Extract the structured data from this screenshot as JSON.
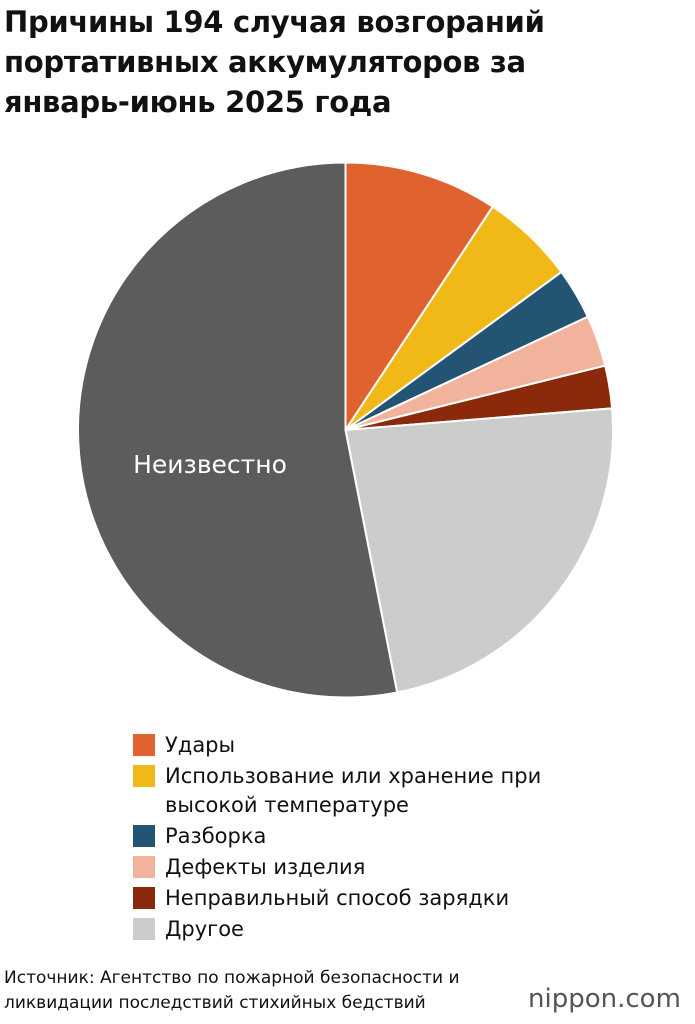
{
  "chart_data": {
    "type": "pie",
    "title": "Причины 194 случая возгораний портативных аккумуляторов за январь-июнь 2025 года",
    "categories": [
      "Удары",
      "Использование или хранение при высокой температуре",
      "Разборка",
      "Дефекты изделия",
      "Неправильный способ зарядки",
      "Другое",
      "Неизвестно"
    ],
    "values": [
      18,
      11,
      6,
      6,
      5,
      45,
      103
    ],
    "colors": [
      "#e0622f",
      "#f0b918",
      "#235473",
      "#f2b39c",
      "#8b2a0a",
      "#cccccc",
      "#5c5c5c"
    ],
    "source": "Источник: Агентство по пожарной безопасности и ликвидации последствий стихийных бедствий",
    "logo": "nippon.com"
  }
}
